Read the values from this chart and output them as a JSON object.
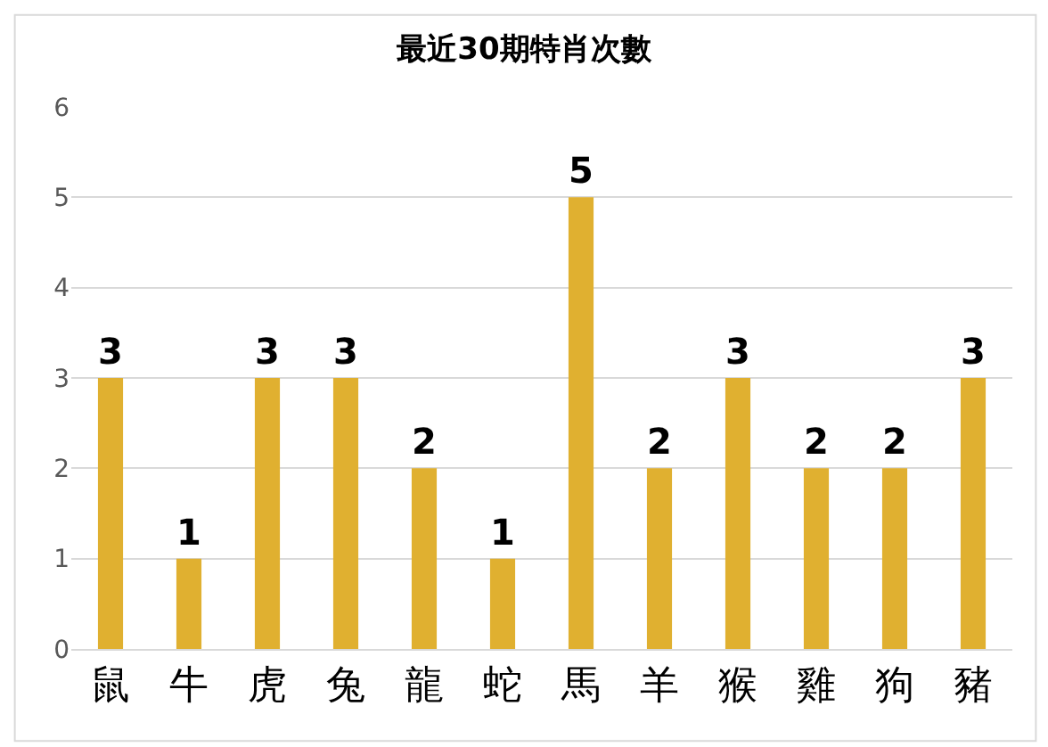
{
  "chart_data": {
    "type": "bar",
    "title": "最近30期特肖次數",
    "categories": [
      "鼠",
      "牛",
      "虎",
      "兔",
      "龍",
      "蛇",
      "馬",
      "羊",
      "猴",
      "雞",
      "狗",
      "豬"
    ],
    "values": [
      3,
      1,
      3,
      3,
      2,
      1,
      5,
      2,
      3,
      2,
      2,
      3
    ],
    "color": "#e0b030",
    "ylim": [
      0,
      6
    ],
    "yticks": [
      0,
      1,
      2,
      3,
      4,
      5,
      6
    ],
    "grid": "y",
    "data_labels": true
  }
}
